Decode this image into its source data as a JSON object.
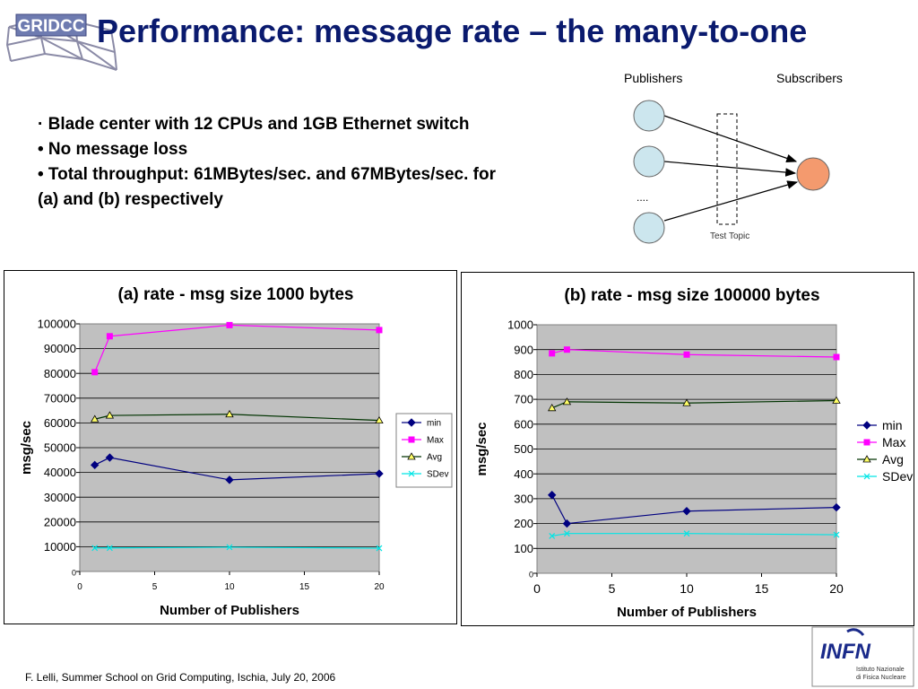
{
  "slide": {
    "title": "Performance: message rate – the many-to-one",
    "bullets": [
      "·  Blade center with 12 CPUs and 1GB Ethernet switch",
      "• No message loss",
      "• Total throughput: 61MBytes/sec. and 67MBytes/sec. for",
      "(a) and (b) respectively"
    ],
    "footer": "F. Lelli, Summer School on Grid Computing, Ischia, July 20, 2006",
    "logo_text": "GRIDCC",
    "infn": {
      "logo": "INFN",
      "line1": "Istituto Nazionale",
      "line2": "di Fisica Nucleare"
    },
    "diagram": {
      "publishers_label": "Publishers",
      "subscribers_label": "Subscribers",
      "ellipsis": "....",
      "topic_label": "Test Topic",
      "publisher_color": "#cce6ee",
      "subscriber_color": "#f49a6e"
    }
  },
  "chart_data": [
    {
      "type": "line",
      "title": "(a) rate - msg size 1000 bytes",
      "xlabel": "Number of Publishers",
      "ylabel": "msg/sec",
      "xlim": [
        0,
        20
      ],
      "ylim": [
        0,
        100000
      ],
      "xticks": [
        "0",
        "5",
        "10",
        "15",
        "20"
      ],
      "yticks": [
        "0",
        "10000",
        "20000",
        "30000",
        "40000",
        "50000",
        "60000",
        "70000",
        "80000",
        "90000",
        "100000"
      ],
      "x": [
        1,
        2,
        10,
        20
      ],
      "grid": true,
      "legend_position": "right",
      "series": [
        {
          "name": "min",
          "values": [
            43000,
            46000,
            37000,
            39500
          ],
          "color": "#000080",
          "marker": "diamond"
        },
        {
          "name": "Max",
          "values": [
            80500,
            95000,
            99500,
            97500
          ],
          "color": "#ff00ff",
          "marker": "square"
        },
        {
          "name": "Avg",
          "values": [
            61500,
            63000,
            63500,
            61000
          ],
          "color": "#003300",
          "marker": "triangle"
        },
        {
          "name": "SDev",
          "values": [
            9500,
            9500,
            9800,
            9400
          ],
          "color": "#00e5e5",
          "marker": "x"
        }
      ]
    },
    {
      "type": "line",
      "title": "(b) rate - msg size 100000 bytes",
      "xlabel": "Number of Publishers",
      "ylabel": "msg/sec",
      "xlim": [
        0,
        20
      ],
      "ylim": [
        0,
        1000
      ],
      "xticks": [
        "0",
        "5",
        "10",
        "15",
        "20"
      ],
      "yticks": [
        "0",
        "100",
        "200",
        "300",
        "400",
        "500",
        "600",
        "700",
        "800",
        "900",
        "1000"
      ],
      "x": [
        1,
        2,
        10,
        20
      ],
      "grid": true,
      "legend_position": "right",
      "series": [
        {
          "name": "min",
          "values": [
            315,
            200,
            250,
            265
          ],
          "color": "#000080",
          "marker": "diamond"
        },
        {
          "name": "Max",
          "values": [
            885,
            900,
            880,
            870
          ],
          "color": "#ff00ff",
          "marker": "square"
        },
        {
          "name": "Avg",
          "values": [
            665,
            690,
            685,
            695
          ],
          "color": "#003300",
          "marker": "triangle"
        },
        {
          "name": "SDev",
          "values": [
            150,
            160,
            160,
            155
          ],
          "color": "#00e5e5",
          "marker": "x"
        }
      ]
    }
  ]
}
